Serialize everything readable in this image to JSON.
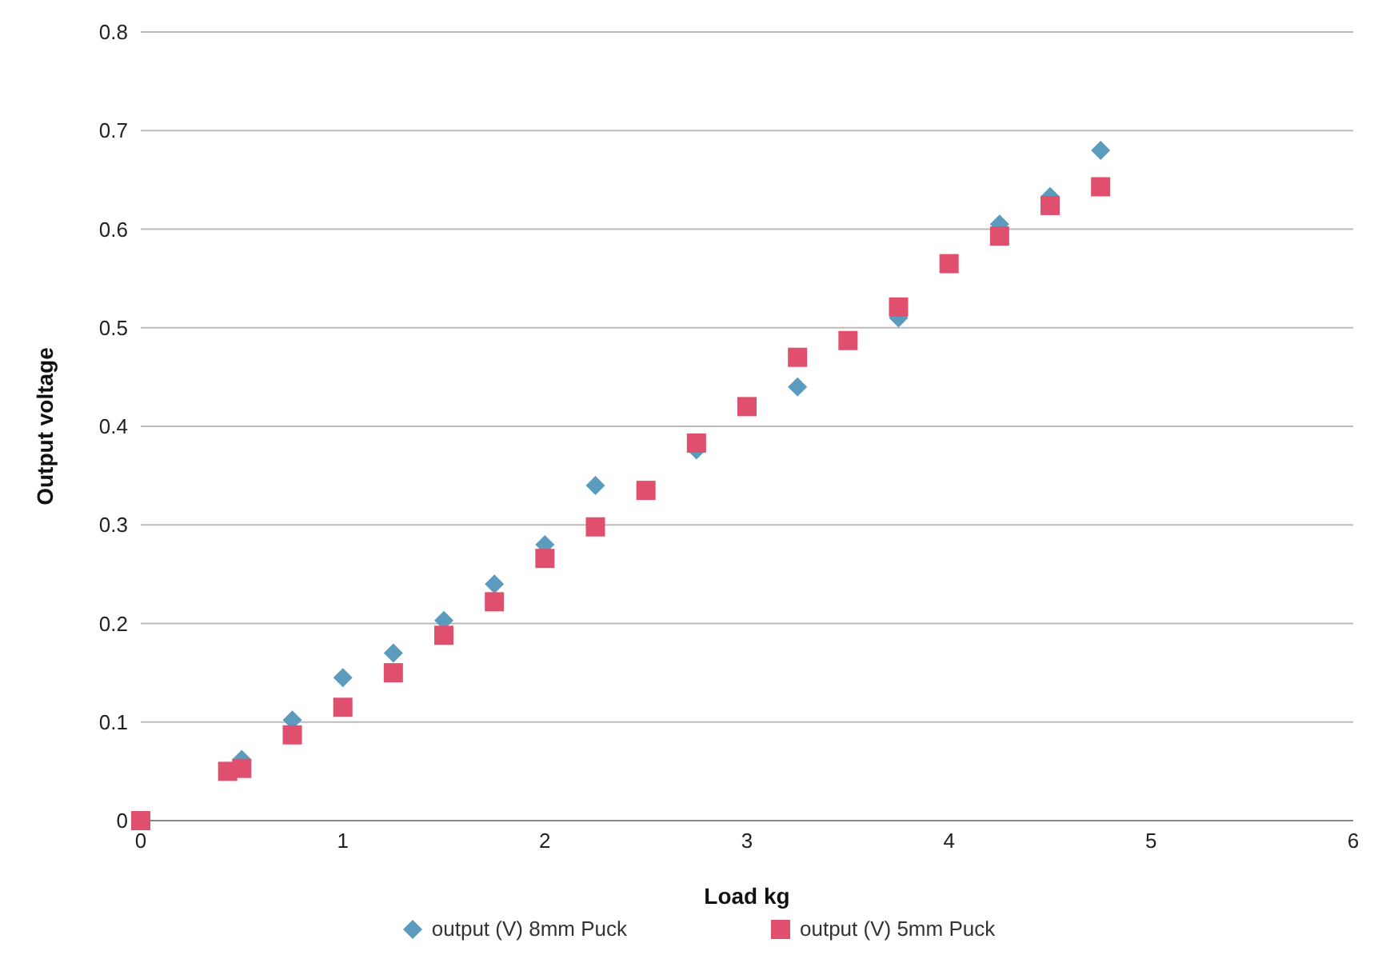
{
  "chart_data": {
    "type": "scatter",
    "xlabel": "Load kg",
    "ylabel": "Output voltage",
    "xlim": [
      0,
      6
    ],
    "xticks": [
      0,
      1,
      2,
      3,
      4,
      5,
      6
    ],
    "ylim": [
      0,
      0.8
    ],
    "yticks": [
      0,
      0.1,
      0.2,
      0.3,
      0.4,
      0.5,
      0.6,
      0.7,
      0.8
    ],
    "grid": "y",
    "legend": "bottom",
    "series": [
      {
        "name": "output (V) 8mm Puck",
        "color": "#5b9bbd",
        "marker": "diamond",
        "x": [
          0.5,
          0.75,
          1,
          1.25,
          1.5,
          1.75,
          2,
          2.25,
          2.75,
          3.25,
          3.75,
          4.25,
          4.5,
          4.75
        ],
        "values": [
          0.062,
          0.102,
          0.145,
          0.17,
          0.203,
          0.24,
          0.28,
          0.34,
          0.376,
          0.44,
          0.51,
          0.605,
          0.633,
          0.68
        ]
      },
      {
        "name": "output (V) 5mm Puck",
        "color": "#e0506e",
        "marker": "square",
        "x": [
          0,
          0.43,
          0.5,
          0.75,
          1,
          1.25,
          1.5,
          1.75,
          2,
          2.25,
          2.5,
          2.75,
          3,
          3.25,
          3.5,
          3.75,
          4,
          4.25,
          4.5,
          4.75
        ],
        "values": [
          0,
          0.05,
          0.053,
          0.087,
          0.115,
          0.15,
          0.188,
          0.222,
          0.266,
          0.298,
          0.335,
          0.383,
          0.42,
          0.47,
          0.487,
          0.521,
          0.565,
          0.593,
          0.624,
          0.643
        ]
      }
    ]
  }
}
